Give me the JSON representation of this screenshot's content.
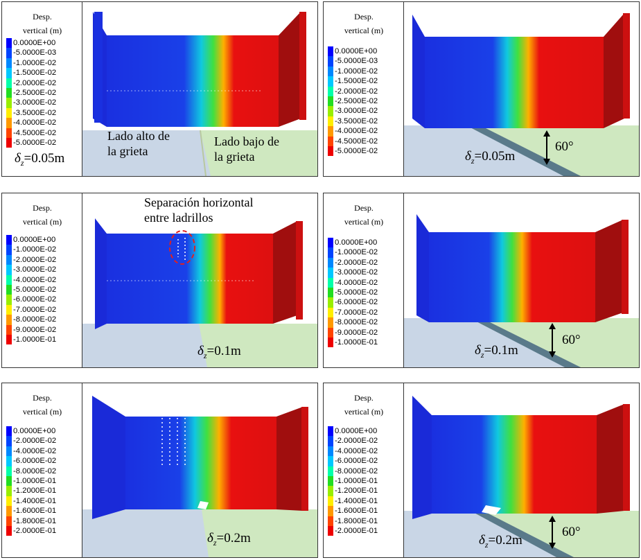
{
  "legend_title_line1": "Desp.",
  "legend_title_line2": "vertical (m)",
  "colors": [
    "#0000ff",
    "#0044ff",
    "#0088ff",
    "#00c8ff",
    "#00ffaa",
    "#22dd22",
    "#99ee00",
    "#ffee00",
    "#ff9900",
    "#ff4400",
    "#ee0000"
  ],
  "scale_005": [
    "0.0000E+00",
    "-5.0000E-03",
    "-1.0000E-02",
    "-1.5000E-02",
    "-2.0000E-02",
    "-2.5000E-02",
    "-3.0000E-02",
    "-3.5000E-02",
    "-4.0000E-02",
    "-4.5000E-02",
    "-5.0000E-02"
  ],
  "scale_01": [
    "0.0000E+00",
    "-1.0000E-02",
    "-2.0000E-02",
    "-3.0000E-02",
    "-4.0000E-02",
    "-5.0000E-02",
    "-6.0000E-02",
    "-7.0000E-02",
    "-8.0000E-02",
    "-9.0000E-02",
    "-1.0000E-01"
  ],
  "scale_02": [
    "0.0000E+00",
    "-2.0000E-02",
    "-4.0000E-02",
    "-6.0000E-02",
    "-8.0000E-02",
    "-1.0000E-01",
    "-1.2000E-01",
    "-1.4000E-01",
    "-1.6000E-01",
    "-1.8000E-01",
    "-2.0000E-01"
  ],
  "dz_symbol": "δ",
  "dz_sub": "z",
  "dz_005": "=0.05m",
  "dz_01": "=0.1m",
  "dz_02": "=0.2m",
  "angle": "60°",
  "ann_high": [
    "Lado alto de",
    "la grieta"
  ],
  "ann_low": [
    "Lado bajo de",
    "la grieta"
  ],
  "ann_sep": [
    "Separación horizontal",
    "entre ladrillos"
  ]
}
